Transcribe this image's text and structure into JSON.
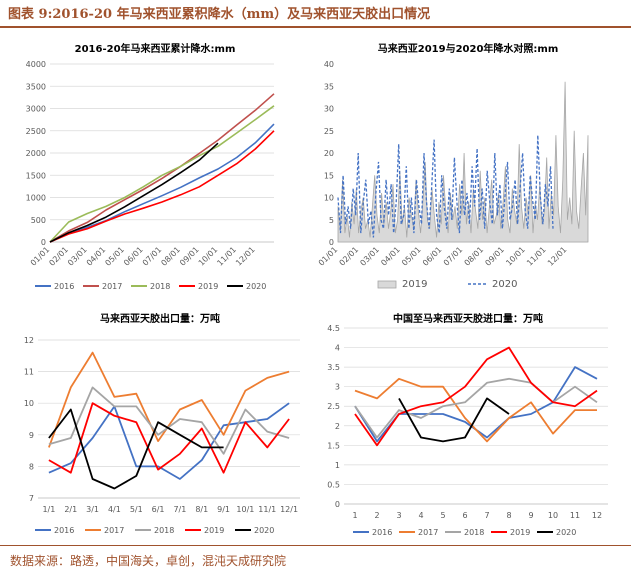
{
  "header": {
    "title": "图表 9:2016-20 年马来西亚累积降水（mm）及马来西亚天胶出口情况"
  },
  "footer": {
    "source": "数据来源：路透，中国海关，卓创，混沌天成研究院"
  },
  "colors": {
    "brand": "#a0522d",
    "s2016": "#4472c4",
    "s2017": "#ed7d31",
    "s2018": "#a5a5a5",
    "s2019": "#ff0000",
    "s2020": "#000000"
  },
  "chart_data": [
    {
      "type": "line",
      "title": "2016-20年马来西亚累计降水:mm",
      "x": [
        "01/01",
        "02/01",
        "03/01",
        "04/01",
        "05/01",
        "06/01",
        "07/01",
        "08/01",
        "09/01",
        "10/01",
        "11/01",
        "12/01",
        "12/31"
      ],
      "x_tick_labels": [
        "01/01",
        "02/01",
        "03/01",
        "04/01",
        "05/01",
        "06/01",
        "07/01",
        "08/01",
        "09/01",
        "10/01",
        "11/01",
        "12/01"
      ],
      "ylim": [
        0,
        4000
      ],
      "y_ticks": [
        0,
        500,
        1000,
        1500,
        2000,
        2500,
        3000,
        3500,
        4000
      ],
      "grid": true,
      "legend": "bottom",
      "series": [
        {
          "name": "2016",
          "color": "#4472c4",
          "values": [
            0,
            200,
            330,
            480,
            680,
            860,
            1040,
            1230,
            1440,
            1640,
            1900,
            2230,
            2650
          ]
        },
        {
          "name": "2017",
          "color": "#c0504d",
          "values": [
            0,
            250,
            440,
            720,
            950,
            1180,
            1430,
            1700,
            1990,
            2290,
            2630,
            2960,
            3330
          ]
        },
        {
          "name": "2018",
          "color": "#9bbb59",
          "values": [
            0,
            450,
            640,
            800,
            1000,
            1240,
            1500,
            1700,
            1940,
            2150,
            2450,
            2750,
            3060
          ]
        },
        {
          "name": "2019",
          "color": "#ff0000",
          "values": [
            0,
            180,
            300,
            470,
            630,
            760,
            900,
            1060,
            1240,
            1500,
            1760,
            2090,
            2500
          ]
        },
        {
          "name": "2020",
          "color": "#000000",
          "values": [
            0,
            210,
            370,
            560,
            790,
            1040,
            1290,
            1560,
            1840,
            2220,
            null,
            null,
            null
          ]
        }
      ]
    },
    {
      "type": "area",
      "title": "马来西亚2019与2020年降水对照:mm",
      "x_tick_labels": [
        "01/01",
        "02/01",
        "03/01",
        "04/01",
        "05/01",
        "06/01",
        "07/01",
        "08/01",
        "09/01",
        "10/01",
        "11/01",
        "12/01"
      ],
      "ylim": [
        0,
        40
      ],
      "y_ticks": [
        0,
        5,
        10,
        15,
        20,
        25,
        30,
        35,
        40
      ],
      "grid": false,
      "legend": "bottom",
      "series": [
        {
          "name": "2019",
          "style": "filled-area",
          "color": "#a6a6a6",
          "values": [
            8,
            3,
            14,
            2,
            6,
            1,
            9,
            4,
            12,
            2,
            7,
            10,
            3,
            5,
            1,
            8,
            15,
            6,
            2,
            11,
            4,
            9,
            3,
            7,
            13,
            2,
            5,
            16,
            4,
            8,
            1,
            10,
            6,
            3,
            14,
            7,
            2,
            9,
            18,
            5,
            3,
            12,
            6,
            1,
            9,
            4,
            15,
            7,
            2,
            11,
            5,
            8,
            3,
            13,
            6,
            20,
            4,
            9,
            2,
            12,
            7,
            3,
            16,
            5,
            10,
            2,
            8,
            14,
            4,
            6,
            11,
            3,
            9,
            17,
            5,
            2,
            12,
            7,
            4,
            22,
            8,
            3,
            10,
            6,
            15,
            2,
            9,
            5,
            13,
            4,
            7,
            19,
            3,
            11,
            6,
            24,
            8,
            2,
            14,
            36,
            5,
            10,
            4,
            25,
            7,
            3,
            12,
            20,
            6,
            24
          ]
        },
        {
          "name": "2020",
          "style": "dashed-line",
          "color": "#4472c4",
          "values": [
            10,
            2,
            15,
            4,
            8,
            3,
            12,
            6,
            20,
            2,
            9,
            14,
            4,
            7,
            1,
            11,
            18,
            5,
            3,
            14,
            6,
            13,
            2,
            9,
            22,
            4,
            6,
            17,
            3,
            10,
            2,
            14,
            8,
            4,
            20,
            9,
            3,
            12,
            23,
            6,
            2,
            15,
            8,
            3,
            12,
            5,
            19,
            9,
            2,
            14,
            6,
            11,
            4,
            17,
            8,
            21,
            5,
            12,
            3,
            16,
            9,
            4,
            20,
            6,
            13,
            3,
            10,
            18,
            5,
            8,
            14,
            4,
            12,
            20,
            7,
            3,
            15,
            9,
            5,
            24,
            10,
            4,
            13,
            8,
            17,
            3
          ]
        }
      ]
    },
    {
      "type": "line",
      "title": "马来西亚天胶出口量：万吨",
      "categories": [
        "1/1",
        "2/1",
        "3/1",
        "4/1",
        "5/1",
        "6/1",
        "7/1",
        "8/1",
        "9/1",
        "10/1",
        "11/1",
        "12/1"
      ],
      "ylim": [
        7,
        12
      ],
      "y_ticks": [
        7,
        8,
        9,
        10,
        11,
        12
      ],
      "grid": true,
      "legend": "bottom",
      "series": [
        {
          "name": "2016",
          "color": "#4472c4",
          "values": [
            7.8,
            8.1,
            8.9,
            9.9,
            8.0,
            8.0,
            7.6,
            8.2,
            9.3,
            9.4,
            9.5,
            10.0
          ]
        },
        {
          "name": "2017",
          "color": "#ed7d31",
          "values": [
            8.6,
            10.5,
            11.6,
            10.2,
            10.3,
            8.8,
            9.8,
            10.1,
            9.0,
            10.4,
            10.8,
            11.0
          ]
        },
        {
          "name": "2018",
          "color": "#a5a5a5",
          "values": [
            8.7,
            8.9,
            10.5,
            9.9,
            9.9,
            9.0,
            9.5,
            9.4,
            8.4,
            9.8,
            9.1,
            8.9
          ]
        },
        {
          "name": "2019",
          "color": "#ff0000",
          "values": [
            8.2,
            7.8,
            10.0,
            9.6,
            9.4,
            7.9,
            8.4,
            9.2,
            7.8,
            9.4,
            8.6,
            9.5
          ]
        },
        {
          "name": "2020",
          "color": "#000000",
          "values": [
            8.9,
            9.8,
            7.6,
            7.3,
            7.7,
            9.4,
            9.0,
            8.6,
            8.6,
            null,
            null,
            null
          ]
        }
      ]
    },
    {
      "type": "line",
      "title": "中国至马来西亚天胶进口量：万吨",
      "categories": [
        "1",
        "2",
        "3",
        "4",
        "5",
        "6",
        "7",
        "8",
        "9",
        "10",
        "11",
        "12"
      ],
      "ylim": [
        0,
        4.5
      ],
      "y_ticks": [
        0,
        0.5,
        1,
        1.5,
        2,
        2.5,
        3,
        3.5,
        4,
        4.5
      ],
      "grid": true,
      "legend": "bottom",
      "series": [
        {
          "name": "2016",
          "color": "#4472c4",
          "values": [
            2.5,
            1.6,
            2.3,
            2.3,
            2.3,
            2.1,
            1.7,
            2.2,
            2.3,
            2.6,
            3.5,
            3.2
          ]
        },
        {
          "name": "2017",
          "color": "#ed7d31",
          "values": [
            2.9,
            2.7,
            3.2,
            3.0,
            3.0,
            2.2,
            1.6,
            2.2,
            2.6,
            1.8,
            2.4,
            2.4
          ]
        },
        {
          "name": "2018",
          "color": "#a5a5a5",
          "values": [
            2.5,
            1.7,
            2.4,
            2.2,
            2.5,
            2.6,
            3.1,
            3.2,
            3.1,
            2.6,
            3.0,
            2.6
          ]
        },
        {
          "name": "2019",
          "color": "#ff0000",
          "values": [
            2.3,
            1.5,
            2.3,
            2.5,
            2.6,
            3.0,
            3.7,
            4.0,
            3.1,
            2.6,
            2.5,
            2.9
          ]
        },
        {
          "name": "2020",
          "color": "#000000",
          "values": [
            null,
            null,
            2.7,
            1.7,
            1.6,
            1.7,
            2.7,
            2.3,
            null,
            null,
            null,
            null
          ]
        }
      ]
    }
  ]
}
